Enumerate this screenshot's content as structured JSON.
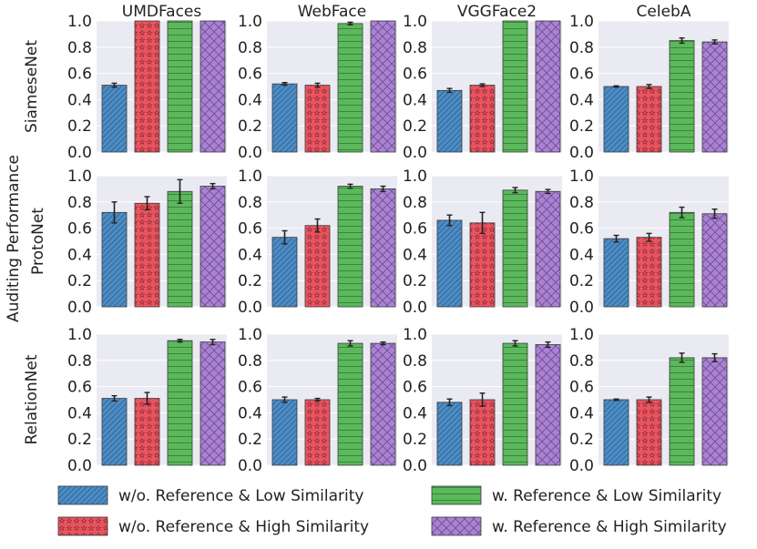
{
  "chart_data": {
    "type": "bar",
    "title": "Auditing Performance",
    "ylabel": "Auditing Performance",
    "ylim": [
      0,
      1
    ],
    "yticks": [
      "0.0",
      "0.2",
      "0.4",
      "0.6",
      "0.8",
      "1.0"
    ],
    "datasets": [
      "UMDFaces",
      "WebFace",
      "VGGFace2",
      "CelebA"
    ],
    "models": [
      "SiameseNet",
      "ProtoNet",
      "RelationNet"
    ],
    "series": [
      {
        "name": "w/o. Reference & Low Similarity",
        "color": "#4c8dc6",
        "pattern": "diagonal"
      },
      {
        "name": "w/o. Reference & High Similarity",
        "color": "#e8545f",
        "pattern": "stars"
      },
      {
        "name": "w. Reference & Low Similarity",
        "color": "#5cb85c",
        "pattern": "horizontal"
      },
      {
        "name": "w. Reference & High Similarity",
        "color": "#ab82d3",
        "pattern": "crosshatch"
      }
    ],
    "values": [
      [
        [
          [
            0.51,
            0.015
          ],
          [
            1.0,
            0.0
          ],
          [
            1.0,
            0.0
          ],
          [
            1.0,
            0.0
          ]
        ],
        [
          [
            0.52,
            0.01
          ],
          [
            0.51,
            0.015
          ],
          [
            0.98,
            0.01
          ],
          [
            1.0,
            0.0
          ]
        ],
        [
          [
            0.47,
            0.015
          ],
          [
            0.51,
            0.01
          ],
          [
            1.0,
            0.0
          ],
          [
            1.0,
            0.0
          ]
        ],
        [
          [
            0.5,
            0.005
          ],
          [
            0.5,
            0.015
          ],
          [
            0.85,
            0.02
          ],
          [
            0.84,
            0.015
          ]
        ]
      ],
      [
        [
          [
            0.72,
            0.08
          ],
          [
            0.79,
            0.05
          ],
          [
            0.88,
            0.09
          ],
          [
            0.92,
            0.02
          ]
        ],
        [
          [
            0.53,
            0.05
          ],
          [
            0.62,
            0.05
          ],
          [
            0.92,
            0.015
          ],
          [
            0.9,
            0.02
          ]
        ],
        [
          [
            0.66,
            0.04
          ],
          [
            0.64,
            0.08
          ],
          [
            0.89,
            0.02
          ],
          [
            0.88,
            0.015
          ]
        ],
        [
          [
            0.52,
            0.025
          ],
          [
            0.53,
            0.03
          ],
          [
            0.72,
            0.04
          ],
          [
            0.71,
            0.035
          ]
        ]
      ],
      [
        [
          [
            0.51,
            0.02
          ],
          [
            0.51,
            0.045
          ],
          [
            0.95,
            0.01
          ],
          [
            0.94,
            0.02
          ]
        ],
        [
          [
            0.5,
            0.02
          ],
          [
            0.5,
            0.01
          ],
          [
            0.93,
            0.02
          ],
          [
            0.93,
            0.01
          ]
        ],
        [
          [
            0.48,
            0.025
          ],
          [
            0.5,
            0.05
          ],
          [
            0.93,
            0.02
          ],
          [
            0.92,
            0.02
          ]
        ],
        [
          [
            0.5,
            0.005
          ],
          [
            0.5,
            0.02
          ],
          [
            0.82,
            0.035
          ],
          [
            0.82,
            0.03
          ]
        ]
      ]
    ]
  }
}
